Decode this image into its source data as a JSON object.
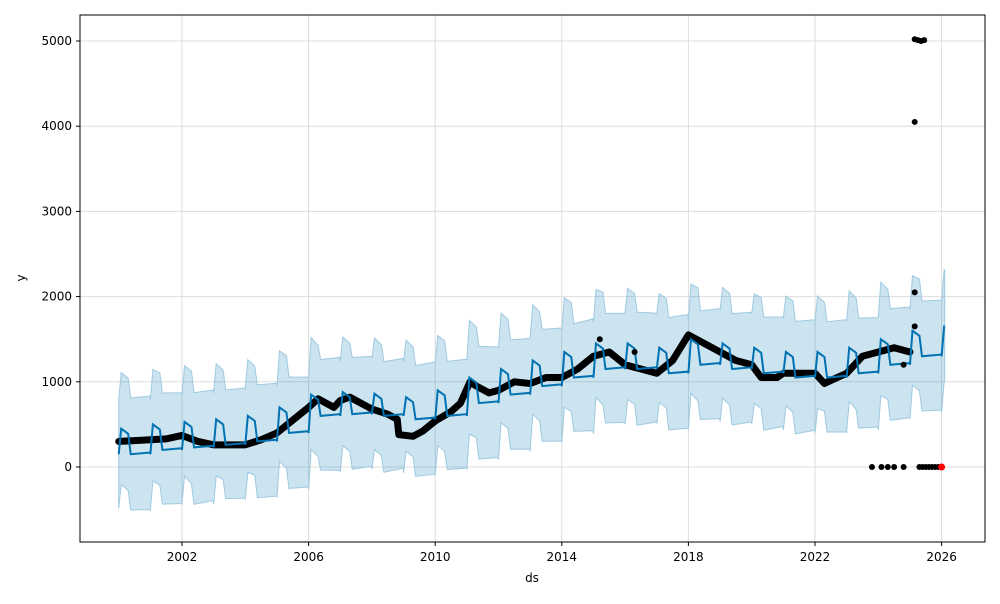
{
  "chart_data": {
    "type": "line",
    "title": "",
    "xlabel": "ds",
    "ylabel": "y",
    "xlim": [
      1999.6,
      2028.1
    ],
    "ylim": [
      -850,
      5300
    ],
    "grid": true,
    "x_ticks": [
      2002,
      2006,
      2010,
      2014,
      2018,
      2022,
      2026
    ],
    "x_tick_labels": [
      "2002",
      "2006",
      "2010",
      "2014",
      "2018",
      "2022",
      "2026"
    ],
    "y_ticks": [
      0,
      1000,
      2000,
      3000,
      4000,
      5000
    ],
    "y_tick_labels": [
      "0",
      "1000",
      "2000",
      "3000",
      "4000",
      "5000"
    ],
    "colors": {
      "forecast": "#0072B2",
      "interval_fill": "#0072B2",
      "observed": "#000000",
      "highlight": "#ff0000"
    },
    "forecast_yearly": {
      "description_units": "yhat low level and seasonal peak per year",
      "years": [
        2000,
        2001,
        2002,
        2003,
        2004,
        2005,
        2006,
        2007,
        2008,
        2009,
        2010,
        2011,
        2012,
        2013,
        2014,
        2015,
        2016,
        2017,
        2018,
        2019,
        2020,
        2021,
        2022,
        2023,
        2024,
        2025,
        2026
      ],
      "low": [
        150,
        200,
        230,
        260,
        300,
        400,
        600,
        620,
        600,
        560,
        600,
        750,
        850,
        950,
        1050,
        1150,
        1150,
        1100,
        1200,
        1150,
        1100,
        1050,
        1050,
        1100,
        1200,
        1300,
        1350
      ],
      "peak": [
        450,
        500,
        530,
        560,
        600,
        700,
        850,
        880,
        860,
        820,
        900,
        1050,
        1150,
        1250,
        1350,
        1450,
        1450,
        1400,
        1500,
        1450,
        1400,
        1350,
        1350,
        1400,
        1500,
        1600,
        1650
      ],
      "interval_halfwidth": 650,
      "end": 2026.1
    },
    "observed": [
      [
        2000.0,
        300
      ],
      [
        2001,
        320
      ],
      [
        2001.5,
        330
      ],
      [
        2002,
        370
      ],
      [
        2002.5,
        300
      ],
      [
        2003,
        260
      ],
      [
        2003.5,
        260
      ],
      [
        2004,
        260
      ],
      [
        2004.5,
        320
      ],
      [
        2005,
        400
      ],
      [
        2005.5,
        550
      ],
      [
        2006,
        700
      ],
      [
        2006.3,
        800
      ],
      [
        2006.8,
        700
      ],
      [
        2007,
        780
      ],
      [
        2007.3,
        820
      ],
      [
        2007.8,
        720
      ],
      [
        2008,
        680
      ],
      [
        2008.5,
        620
      ],
      [
        2008.8,
        560
      ],
      [
        2008.85,
        380
      ],
      [
        2009.3,
        360
      ],
      [
        2009.6,
        420
      ],
      [
        2010,
        540
      ],
      [
        2010.5,
        650
      ],
      [
        2010.8,
        750
      ],
      [
        2011.1,
        1000
      ],
      [
        2011.3,
        950
      ],
      [
        2011.7,
        870
      ],
      [
        2012,
        900
      ],
      [
        2012.5,
        1000
      ],
      [
        2013,
        980
      ],
      [
        2013.5,
        1050
      ],
      [
        2014,
        1050
      ],
      [
        2014.5,
        1150
      ],
      [
        2015,
        1300
      ],
      [
        2015.5,
        1350
      ],
      [
        2016,
        1200
      ],
      [
        2016.5,
        1150
      ],
      [
        2017,
        1100
      ],
      [
        2017.5,
        1250
      ],
      [
        2018,
        1550
      ],
      [
        2018.5,
        1450
      ],
      [
        2019,
        1350
      ],
      [
        2019.5,
        1250
      ],
      [
        2020,
        1200
      ],
      [
        2020.3,
        1050
      ],
      [
        2020.8,
        1050
      ],
      [
        2021,
        1100
      ],
      [
        2021.5,
        1100
      ],
      [
        2022,
        1100
      ],
      [
        2022.3,
        980
      ],
      [
        2022.7,
        1050
      ],
      [
        2023,
        1100
      ],
      [
        2023.5,
        1300
      ],
      [
        2024,
        1350
      ],
      [
        2024.5,
        1400
      ],
      [
        2025,
        1350
      ]
    ],
    "outliers": [
      [
        2015.2,
        1500
      ],
      [
        2016.3,
        1350
      ],
      [
        2024.8,
        1200
      ],
      [
        2025.15,
        1650
      ],
      [
        2025.15,
        2050
      ],
      [
        2025.15,
        4050
      ],
      [
        2025.15,
        5020
      ],
      [
        2025.25,
        5010
      ],
      [
        2025.35,
        5000
      ],
      [
        2025.45,
        5010
      ],
      [
        2023.8,
        0
      ],
      [
        2024.1,
        0
      ],
      [
        2024.3,
        0
      ],
      [
        2024.5,
        0
      ],
      [
        2024.8,
        0
      ],
      [
        2025.3,
        0
      ],
      [
        2025.4,
        0
      ],
      [
        2025.5,
        0
      ],
      [
        2025.6,
        0
      ],
      [
        2025.7,
        0
      ],
      [
        2025.8,
        0
      ],
      [
        2025.9,
        0
      ]
    ],
    "highlighted": [
      [
        2026.0,
        0
      ]
    ]
  }
}
